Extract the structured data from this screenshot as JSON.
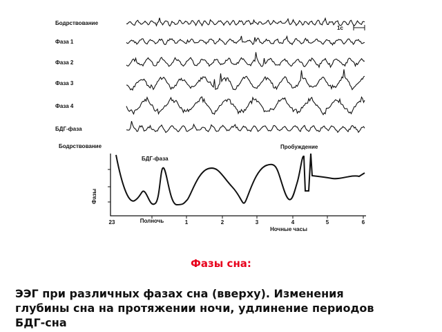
{
  "eeg": {
    "stages": [
      "Бодрствование",
      "Фаза 1",
      "Фаза 2",
      "Фаза 3",
      "Фаза 4",
      "БДГ-фаза"
    ],
    "scale_label": "1с"
  },
  "hypnogram": {
    "wake_label": "Бодрствование",
    "rem_label": "БДГ-фаза",
    "awakening_label": "Пробуждение",
    "y_label": "Фазы",
    "x_labels": [
      "23",
      "Полночь",
      "1",
      "2",
      "3",
      "4",
      "5",
      "6"
    ],
    "x_label": "Ночные часы"
  },
  "title": "Фазы сна:",
  "caption": [
    "ЭЭГ при различных фазах сна (вверху). Изменения",
    "глубины сна на протяжении ночи, удлинение периодов",
    "БДГ-сна"
  ]
}
